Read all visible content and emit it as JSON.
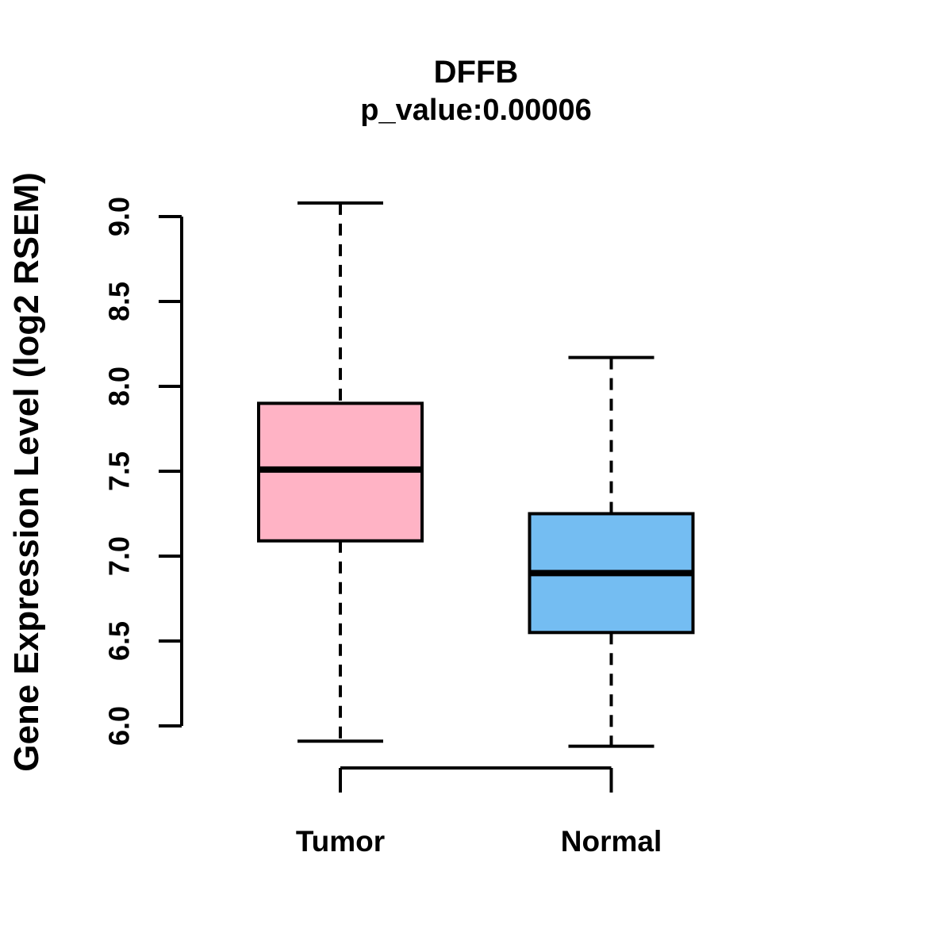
{
  "chart_data": {
    "type": "boxplot",
    "title": "DFFB",
    "subtitle": "p_value:0.00006",
    "ylabel": "Gene Expression Level (log2 RSEM)",
    "xlabel": "",
    "categories": [
      "Tumor",
      "Normal"
    ],
    "series": [
      {
        "name": "Tumor",
        "color": "#FFB3C5",
        "whisker_low": 5.91,
        "q1": 7.09,
        "median": 7.51,
        "q3": 7.9,
        "whisker_high": 9.08
      },
      {
        "name": "Normal",
        "color": "#74BDF2",
        "whisker_low": 5.88,
        "q1": 6.55,
        "median": 6.9,
        "q3": 7.25,
        "whisker_high": 8.17
      }
    ],
    "yticks": [
      6.0,
      6.5,
      7.0,
      7.5,
      8.0,
      8.5,
      9.0
    ],
    "ytick_labels": [
      "6.0",
      "6.5",
      "7.0",
      "7.5",
      "8.0",
      "8.5",
      "9.0"
    ],
    "ylim": [
      6.0,
      9.0
    ],
    "grid": false,
    "legend": "none",
    "axis_color": "#000000",
    "background": "#FFFFFF"
  }
}
